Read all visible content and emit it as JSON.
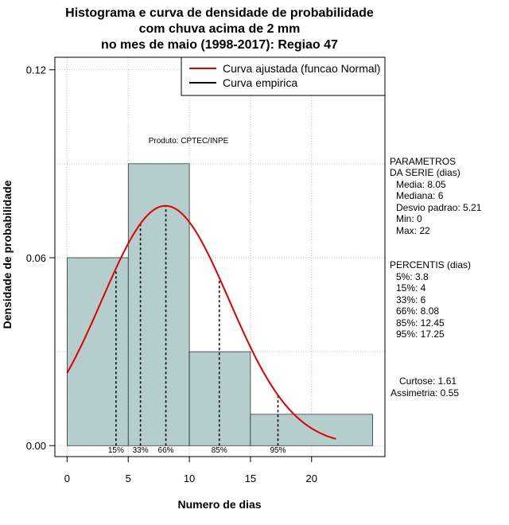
{
  "chart_data": {
    "type": "bar",
    "title_lines": [
      "Histograma e curva de densidade de probabilidade",
      "com chuva acima de 2 mm",
      "no mes de maio (1998-2017): Regiao 47"
    ],
    "xlabel": "Numero de dias",
    "ylabel": "Densidade de probabilidade",
    "xlim": [
      -1,
      26
    ],
    "ylim": [
      -0.0035,
      0.124
    ],
    "x_ticks": [
      "0",
      "5",
      "10",
      "15",
      "20"
    ],
    "y_ticks": [
      "0.00",
      "0.06",
      "0.12"
    ],
    "x_tick_values": [
      0,
      5,
      10,
      15,
      20
    ],
    "y_tick_values": [
      0.0,
      0.06,
      0.12
    ],
    "bins": [
      {
        "from": 0,
        "to": 5,
        "density": 0.06
      },
      {
        "from": 5,
        "to": 10,
        "density": 0.09
      },
      {
        "from": 10,
        "to": 15,
        "density": 0.03
      },
      {
        "from": 15,
        "to": 25,
        "density": 0.01
      }
    ],
    "fitted_curve": {
      "name": "Curva ajustada (funcao Normal)",
      "mean": 8.05,
      "sd": 5.21,
      "x_from": 0,
      "x_to": 22,
      "color": "#e00000"
    },
    "empirical_curve": {
      "name": "Curva empirica",
      "color": "#000000"
    },
    "percentile_lines": [
      {
        "label": "15%",
        "x": 4
      },
      {
        "label": "33%",
        "x": 6
      },
      {
        "label": "66%",
        "x": 8.08
      },
      {
        "label": "85%",
        "x": 12.45
      },
      {
        "label": "95%",
        "x": 17.25
      }
    ],
    "percentile_label_positions": [
      4,
      6,
      8.08,
      12.45,
      17.25
    ],
    "source_note": "Produto: CPTEC/INPE",
    "bar_color": "#b5cdcd",
    "legend_position": "top-right"
  },
  "side_panel": {
    "param_title_1": "PARAMETROS",
    "param_title_2": "DA SERIE (dias)",
    "param_lines": [
      "Media: 8.05",
      "Mediana: 6",
      "Desvio padrao: 5.21",
      "Min: 0",
      "Max: 22"
    ],
    "perc_title": "PERCENTIS (dias)",
    "perc_lines": [
      "5%: 3.8",
      "15%: 4",
      "33%: 6",
      "66%: 8.08",
      "85%: 12.45",
      "95%: 17.25"
    ],
    "curtose": "Curtose: 1.61",
    "assimetria": "Assimetria: 0.55"
  }
}
